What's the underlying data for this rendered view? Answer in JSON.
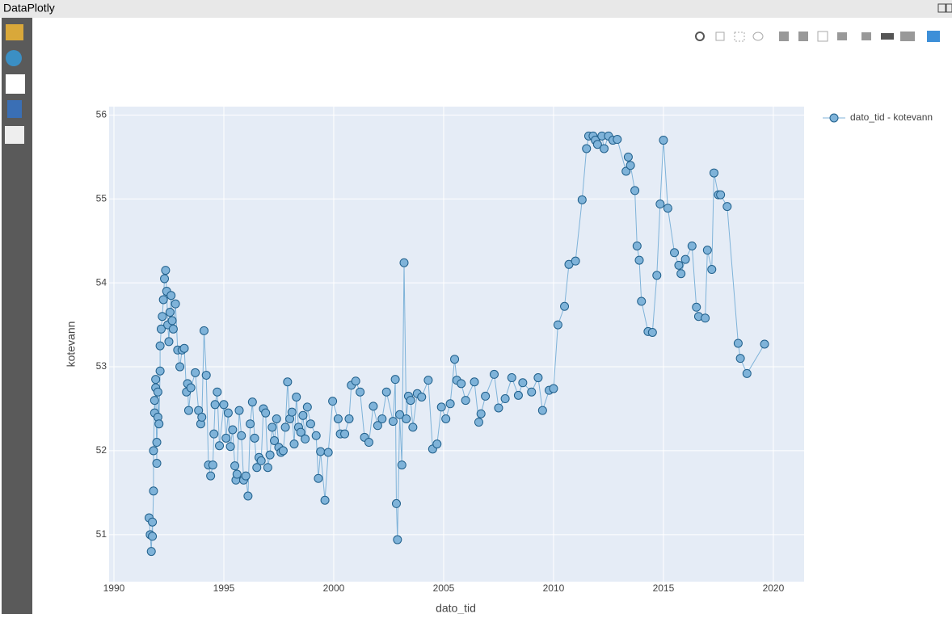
{
  "window": {
    "title": "DataPlotly"
  },
  "chart_data": {
    "type": "line",
    "xlabel": "dato_tid",
    "ylabel": "kotevann",
    "series": [
      {
        "name": "dato_tid - kotevann",
        "color": "#7fb3d9",
        "edge": "#1f5f8b",
        "x": [
          1991.6,
          1991.65,
          1991.7,
          1991.75,
          1991.75,
          1991.8,
          1991.8,
          1991.85,
          1991.85,
          1991.9,
          1991.9,
          1991.95,
          1991.95,
          1992.0,
          1992.0,
          1992.05,
          1992.1,
          1992.1,
          1992.15,
          1992.2,
          1992.25,
          1992.3,
          1992.35,
          1992.4,
          1992.45,
          1992.5,
          1992.55,
          1992.6,
          1992.65,
          1992.7,
          1992.8,
          1992.9,
          1993.0,
          1993.1,
          1993.2,
          1993.3,
          1993.35,
          1993.4,
          1993.5,
          1993.7,
          1993.85,
          1993.95,
          1994.0,
          1994.1,
          1994.2,
          1994.3,
          1994.4,
          1994.5,
          1994.55,
          1994.6,
          1994.7,
          1994.8,
          1995.0,
          1995.1,
          1995.2,
          1995.3,
          1995.4,
          1995.5,
          1995.55,
          1995.6,
          1995.7,
          1995.8,
          1995.9,
          1996.0,
          1996.1,
          1996.2,
          1996.3,
          1996.4,
          1996.5,
          1996.6,
          1996.7,
          1996.8,
          1996.9,
          1997.0,
          1997.1,
          1997.2,
          1997.3,
          1997.4,
          1997.5,
          1997.6,
          1997.7,
          1997.8,
          1997.9,
          1998.0,
          1998.1,
          1998.2,
          1998.3,
          1998.4,
          1998.5,
          1998.6,
          1998.7,
          1998.8,
          1998.95,
          1999.2,
          1999.3,
          1999.4,
          1999.6,
          1999.75,
          1999.95,
          2000.2,
          2000.3,
          2000.5,
          2000.7,
          2000.8,
          2001.0,
          2001.2,
          2001.4,
          2001.6,
          2001.8,
          2002.0,
          2002.2,
          2002.4,
          2002.7,
          2002.8,
          2002.85,
          2002.9,
          2003.0,
          2003.1,
          2003.2,
          2003.3,
          2003.4,
          2003.5,
          2003.6,
          2003.8,
          2004.0,
          2004.3,
          2004.5,
          2004.7,
          2004.9,
          2005.1,
          2005.3,
          2005.5,
          2005.6,
          2005.8,
          2006.0,
          2006.4,
          2006.6,
          2006.7,
          2006.9,
          2007.3,
          2007.5,
          2007.8,
          2008.1,
          2008.4,
          2008.6,
          2009.0,
          2009.3,
          2009.5,
          2009.8,
          2010.0,
          2010.2,
          2010.5,
          2010.7,
          2011.0,
          2011.3,
          2011.5,
          2011.6,
          2011.8,
          2011.9,
          2012.0,
          2012.2,
          2012.3,
          2012.5,
          2012.7,
          2012.9,
          2013.3,
          2013.4,
          2013.5,
          2013.7,
          2013.8,
          2013.9,
          2014.0,
          2014.3,
          2014.5,
          2014.7,
          2014.85,
          2015.0,
          2015.2,
          2015.5,
          2015.7,
          2015.8,
          2016.0,
          2016.3,
          2016.5,
          2016.6,
          2016.9,
          2017.0,
          2017.2,
          2017.3,
          2017.5,
          2017.6,
          2017.9,
          2018.4,
          2018.5,
          2018.8,
          2019.6
        ],
        "values": [
          51.2,
          51.0,
          50.8,
          51.15,
          50.98,
          51.52,
          52.0,
          52.6,
          52.45,
          52.75,
          52.85,
          51.85,
          52.1,
          52.4,
          52.7,
          52.32,
          52.95,
          53.25,
          53.45,
          53.6,
          53.8,
          54.05,
          54.15,
          53.9,
          53.5,
          53.3,
          53.65,
          53.85,
          53.55,
          53.45,
          53.75,
          53.2,
          53.0,
          53.2,
          53.22,
          52.7,
          52.8,
          52.48,
          52.75,
          52.93,
          52.48,
          52.32,
          52.4,
          53.43,
          52.9,
          51.83,
          51.7,
          51.83,
          52.2,
          52.55,
          52.7,
          52.06,
          52.55,
          52.15,
          52.45,
          52.05,
          52.25,
          51.82,
          51.65,
          51.72,
          52.48,
          52.18,
          51.65,
          51.7,
          51.46,
          52.32,
          52.58,
          52.15,
          51.8,
          51.92,
          51.88,
          52.5,
          52.45,
          51.8,
          51.95,
          52.28,
          52.12,
          52.38,
          52.04,
          51.98,
          52.0,
          52.28,
          52.82,
          52.38,
          52.46,
          52.08,
          52.64,
          52.28,
          52.22,
          52.42,
          52.14,
          52.52,
          52.32,
          52.18,
          51.67,
          51.99,
          51.41,
          51.98,
          52.59,
          52.38,
          52.2,
          52.2,
          52.38,
          52.78,
          52.83,
          52.7,
          52.16,
          52.1,
          52.53,
          52.3,
          52.38,
          52.7,
          52.35,
          52.85,
          51.37,
          50.94,
          52.43,
          51.83,
          54.24,
          52.38,
          52.65,
          52.6,
          52.28,
          52.68,
          52.64,
          52.84,
          52.02,
          52.08,
          52.52,
          52.38,
          52.56,
          53.09,
          52.84,
          52.8,
          52.6,
          52.82,
          52.34,
          52.44,
          52.65,
          52.91,
          52.51,
          52.62,
          52.87,
          52.66,
          52.81,
          52.7,
          52.87,
          52.48,
          52.72,
          52.74,
          53.5,
          53.72,
          54.22,
          54.26,
          54.99,
          55.6,
          55.75,
          55.75,
          55.7,
          55.65,
          55.75,
          55.6,
          55.75,
          55.7,
          55.71,
          55.33,
          55.5,
          55.4,
          55.1,
          54.44,
          54.27,
          53.78,
          53.42,
          53.41,
          54.09,
          54.94,
          55.7,
          54.89,
          54.36,
          54.21,
          54.11,
          54.28,
          54.44,
          53.71,
          53.6,
          53.58,
          54.39,
          54.16,
          55.31,
          55.05,
          55.05,
          54.91,
          53.28,
          53.1,
          52.92,
          53.27
        ]
      }
    ],
    "xlim": [
      1989.78,
      2021.4
    ],
    "ylim": [
      50.44,
      56.1
    ],
    "xticks": [
      1990,
      1995,
      2000,
      2005,
      2010,
      2015,
      2020
    ],
    "yticks": [
      51,
      52,
      53,
      54,
      55,
      56
    ],
    "grid": true,
    "legend": "top-right"
  }
}
